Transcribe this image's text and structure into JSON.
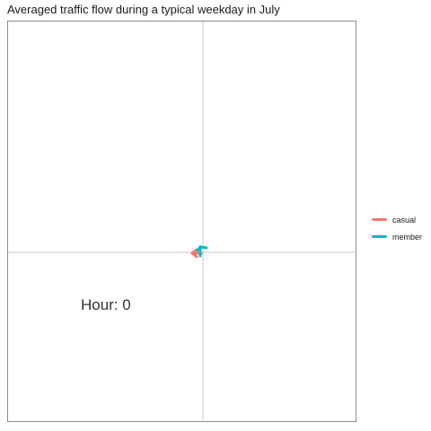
{
  "chart_data": {
    "type": "line",
    "title": "Averaged traffic flow during a typical weekday in July",
    "annotation": "Hour:  0",
    "grid": true,
    "legend_position": "right",
    "series": [
      {
        "name": "casual",
        "color": "#F8766D",
        "value": 0.05,
        "direction": "left"
      },
      {
        "name": "member",
        "color": "#00BFC4",
        "value": 0.05,
        "direction": "up"
      }
    ]
  }
}
